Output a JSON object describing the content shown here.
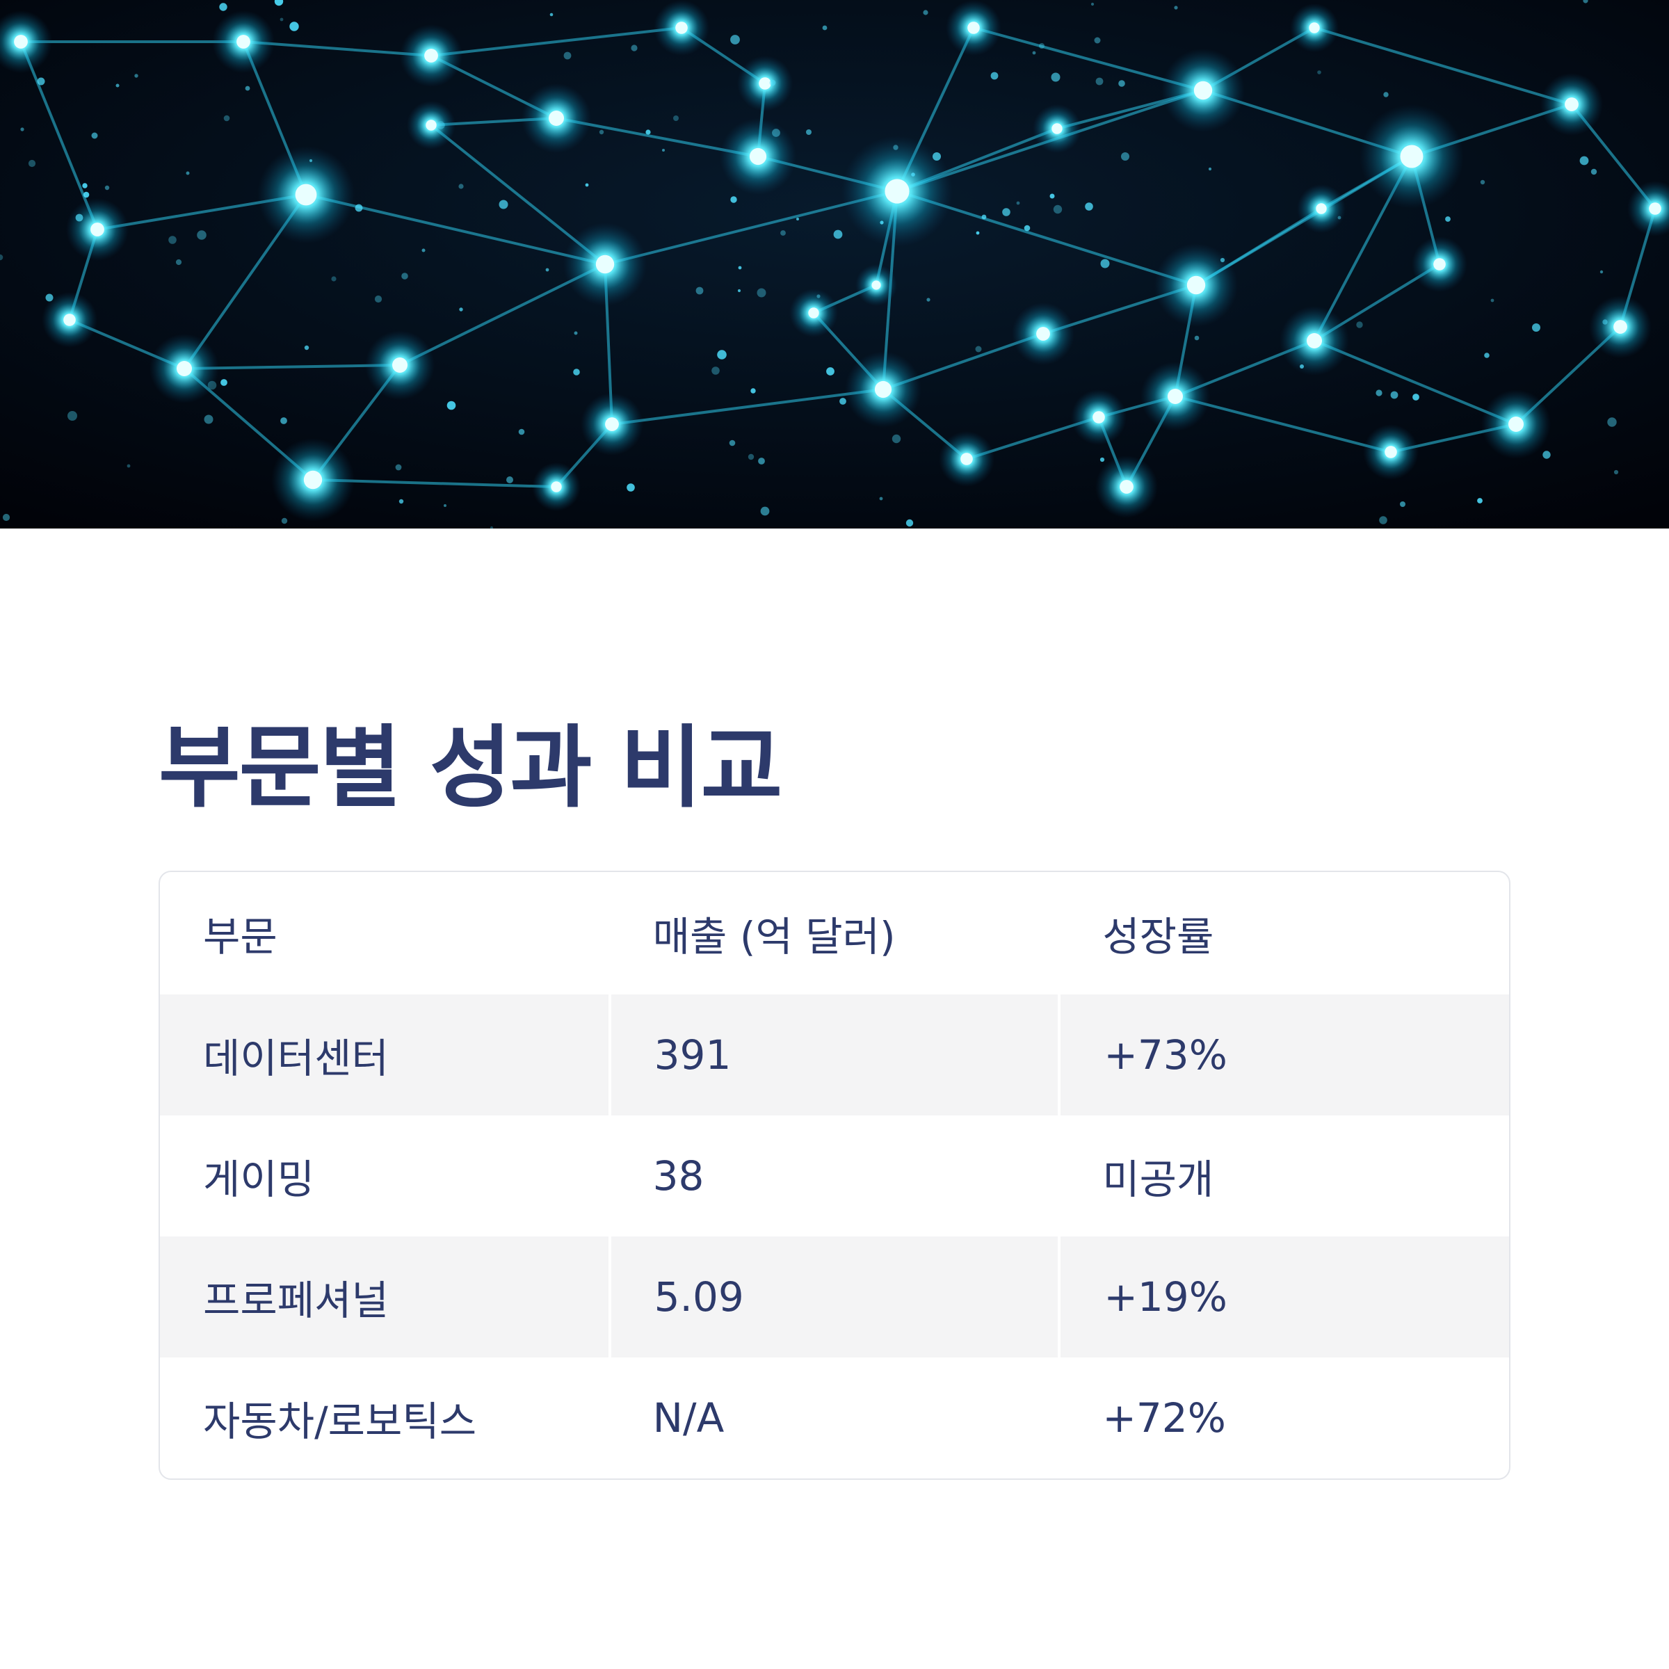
{
  "title": "부문별 성과 비교",
  "table": {
    "headers": [
      "부문",
      "매출 (억 달러)",
      "성장률"
    ],
    "rows": [
      [
        "데이터센터",
        "391",
        "+73%"
      ],
      [
        "게이밍",
        "38",
        "미공개"
      ],
      [
        "프로페셔널",
        "5.09",
        "+19%"
      ],
      [
        "자동차/로보틱스",
        "N/A",
        "+72%"
      ]
    ]
  },
  "colors": {
    "title": "#2d3a6b",
    "text": "#2d3a6b",
    "row_stripe": "#f4f4f5",
    "border": "#e3e5ea",
    "hero_bg": "#02060d",
    "node_glow": "#37e6ff"
  },
  "hero": {
    "icon": "neural-network-image"
  }
}
